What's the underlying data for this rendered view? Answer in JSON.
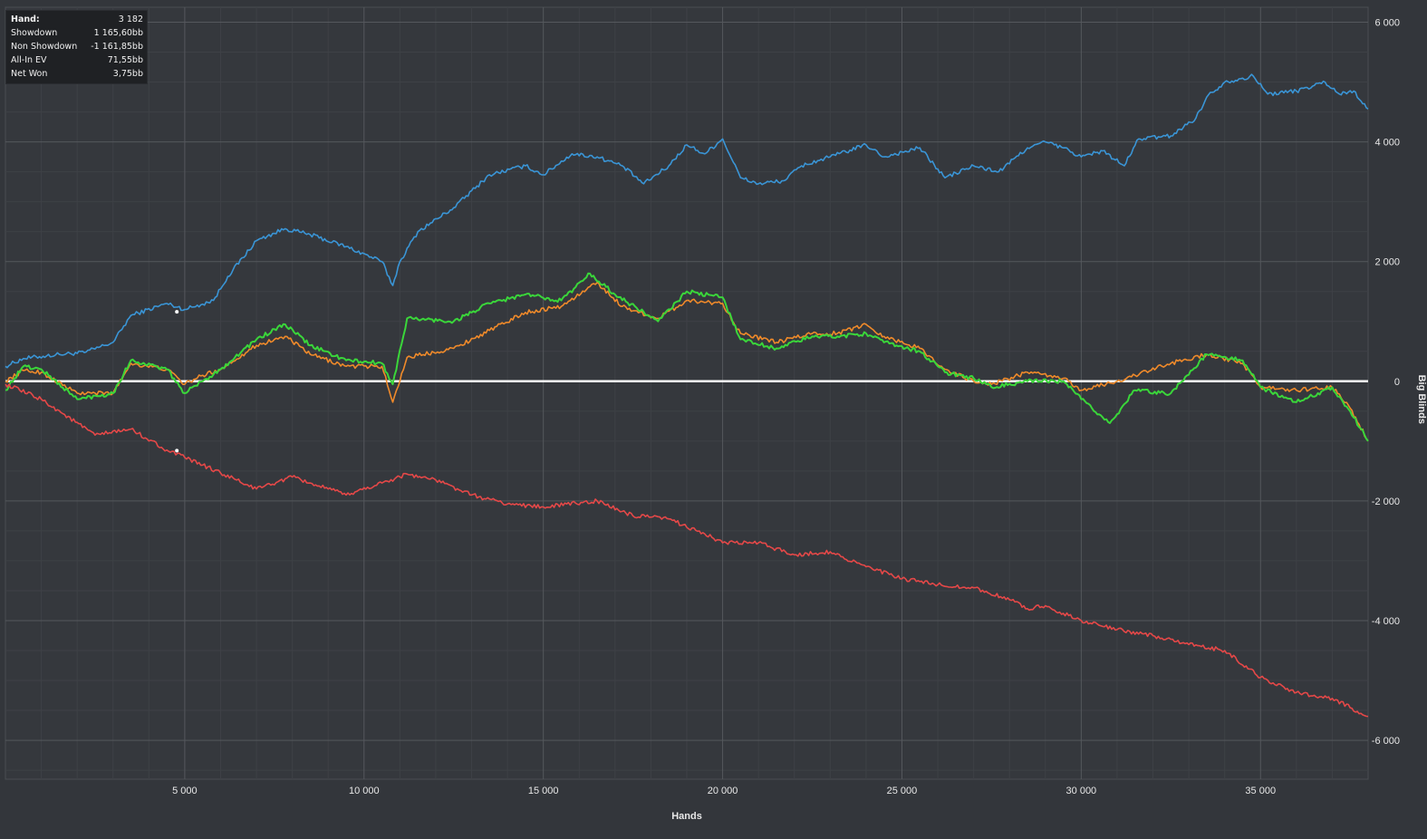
{
  "info_panel": {
    "rows": [
      {
        "label": "Hand:",
        "value": "3 182"
      },
      {
        "label": "Showdown",
        "value": "1 165,60bb"
      },
      {
        "label": "Non Showdown",
        "value": "-1 161,85bb"
      },
      {
        "label": "All-In EV",
        "value": "71,55bb"
      },
      {
        "label": "Net Won",
        "value": "3,75bb"
      }
    ]
  },
  "chart_data": {
    "type": "line",
    "xlabel": "Hands",
    "ylabel": "Big Blinds",
    "xlim": [
      0,
      38000
    ],
    "ylim": [
      -6650,
      6250
    ],
    "x_ticks": [
      5000,
      10000,
      15000,
      20000,
      25000,
      30000,
      35000
    ],
    "x_tick_labels": [
      "5 000",
      "10 000",
      "15 000",
      "20 000",
      "25 000",
      "30 000",
      "35 000"
    ],
    "y_ticks": [
      6000,
      4000,
      2000,
      0,
      -2000,
      -4000,
      -6000
    ],
    "y_tick_labels": [
      "6 000",
      "4 000",
      "2 000",
      "0",
      "-2 000",
      "-4 000",
      "-6 000"
    ],
    "grid": true,
    "zero_line": true,
    "series": [
      {
        "color": "#3a95d6",
        "points": [
          [
            0,
            250
          ],
          [
            500,
            380
          ],
          [
            1500,
            450
          ],
          [
            2200,
            480
          ],
          [
            3000,
            650
          ],
          [
            3500,
            1100
          ],
          [
            4500,
            1300
          ],
          [
            5000,
            1200
          ],
          [
            5800,
            1350
          ],
          [
            6200,
            1750
          ],
          [
            7000,
            2350
          ],
          [
            7800,
            2550
          ],
          [
            8500,
            2450
          ],
          [
            9500,
            2250
          ],
          [
            10500,
            2000
          ],
          [
            10800,
            1600
          ],
          [
            11000,
            2000
          ],
          [
            11500,
            2500
          ],
          [
            12500,
            2900
          ],
          [
            13500,
            3450
          ],
          [
            14500,
            3600
          ],
          [
            15000,
            3450
          ],
          [
            15800,
            3800
          ],
          [
            16500,
            3750
          ],
          [
            17200,
            3600
          ],
          [
            17800,
            3300
          ],
          [
            18500,
            3600
          ],
          [
            19000,
            3950
          ],
          [
            19500,
            3800
          ],
          [
            20000,
            4050
          ],
          [
            20500,
            3400
          ],
          [
            21000,
            3300
          ],
          [
            21700,
            3350
          ],
          [
            22200,
            3600
          ],
          [
            23000,
            3750
          ],
          [
            24000,
            3950
          ],
          [
            24500,
            3750
          ],
          [
            25500,
            3900
          ],
          [
            26200,
            3400
          ],
          [
            27000,
            3600
          ],
          [
            27700,
            3500
          ],
          [
            28500,
            3900
          ],
          [
            29000,
            4000
          ],
          [
            29500,
            3900
          ],
          [
            30000,
            3750
          ],
          [
            30600,
            3850
          ],
          [
            31200,
            3600
          ],
          [
            31600,
            4050
          ],
          [
            32500,
            4100
          ],
          [
            33200,
            4400
          ],
          [
            33500,
            4750
          ],
          [
            34000,
            5000
          ],
          [
            34800,
            5100
          ],
          [
            35200,
            4800
          ],
          [
            36000,
            4850
          ],
          [
            36800,
            5000
          ],
          [
            37200,
            4800
          ],
          [
            37600,
            4850
          ],
          [
            38000,
            4550
          ]
        ]
      },
      {
        "color": "#f08a2a",
        "points": [
          [
            0,
            0
          ],
          [
            500,
            180
          ],
          [
            1000,
            150
          ],
          [
            2000,
            -200
          ],
          [
            3000,
            -200
          ],
          [
            3500,
            300
          ],
          [
            4500,
            200
          ],
          [
            5000,
            -50
          ],
          [
            5500,
            100
          ],
          [
            6000,
            200
          ],
          [
            7000,
            600
          ],
          [
            7800,
            750
          ],
          [
            8500,
            450
          ],
          [
            9500,
            250
          ],
          [
            10500,
            250
          ],
          [
            10800,
            -350
          ],
          [
            11200,
            400
          ],
          [
            12500,
            550
          ],
          [
            13500,
            850
          ],
          [
            14500,
            1150
          ],
          [
            15500,
            1250
          ],
          [
            16500,
            1650
          ],
          [
            17200,
            1250
          ],
          [
            18200,
            1050
          ],
          [
            19000,
            1350
          ],
          [
            20000,
            1300
          ],
          [
            20500,
            800
          ],
          [
            21500,
            650
          ],
          [
            22500,
            800
          ],
          [
            23200,
            800
          ],
          [
            24000,
            950
          ],
          [
            24500,
            750
          ],
          [
            25500,
            550
          ],
          [
            26200,
            200
          ],
          [
            27000,
            0
          ],
          [
            27500,
            -50
          ],
          [
            28500,
            150
          ],
          [
            29500,
            50
          ],
          [
            30000,
            -150
          ],
          [
            31000,
            0
          ],
          [
            31500,
            100
          ],
          [
            32500,
            300
          ],
          [
            33500,
            450
          ],
          [
            34500,
            300
          ],
          [
            35000,
            -100
          ],
          [
            36000,
            -150
          ],
          [
            37000,
            -100
          ],
          [
            37500,
            -450
          ],
          [
            38000,
            -1000
          ]
        ]
      },
      {
        "color": "#3ad63a",
        "points": [
          [
            0,
            -150
          ],
          [
            500,
            250
          ],
          [
            1000,
            200
          ],
          [
            2000,
            -300
          ],
          [
            3000,
            -200
          ],
          [
            3500,
            350
          ],
          [
            4500,
            200
          ],
          [
            5000,
            -200
          ],
          [
            5500,
            0
          ],
          [
            6000,
            200
          ],
          [
            7000,
            700
          ],
          [
            7800,
            950
          ],
          [
            8500,
            600
          ],
          [
            9500,
            350
          ],
          [
            10500,
            300
          ],
          [
            10800,
            -50
          ],
          [
            11200,
            1050
          ],
          [
            12500,
            1000
          ],
          [
            13500,
            1300
          ],
          [
            14500,
            1450
          ],
          [
            15500,
            1350
          ],
          [
            16300,
            1800
          ],
          [
            17000,
            1450
          ],
          [
            18200,
            1000
          ],
          [
            19000,
            1500
          ],
          [
            20000,
            1400
          ],
          [
            20500,
            700
          ],
          [
            21500,
            550
          ],
          [
            22500,
            750
          ],
          [
            23200,
            750
          ],
          [
            24000,
            800
          ],
          [
            24500,
            650
          ],
          [
            25500,
            500
          ],
          [
            26200,
            150
          ],
          [
            27000,
            50
          ],
          [
            27500,
            -100
          ],
          [
            28500,
            0
          ],
          [
            29500,
            0
          ],
          [
            30000,
            -300
          ],
          [
            30800,
            -700
          ],
          [
            31500,
            -150
          ],
          [
            32500,
            -200
          ],
          [
            33500,
            450
          ],
          [
            34500,
            350
          ],
          [
            35000,
            -100
          ],
          [
            36000,
            -350
          ],
          [
            37000,
            -100
          ],
          [
            37500,
            -500
          ],
          [
            38000,
            -1000
          ]
        ]
      },
      {
        "color": "#e54848",
        "points": [
          [
            0,
            -50
          ],
          [
            1000,
            -300
          ],
          [
            2500,
            -900
          ],
          [
            3500,
            -800
          ],
          [
            4500,
            -1150
          ],
          [
            5500,
            -1400
          ],
          [
            7000,
            -1800
          ],
          [
            8000,
            -1600
          ],
          [
            9000,
            -1800
          ],
          [
            9500,
            -1900
          ],
          [
            10500,
            -1700
          ],
          [
            11200,
            -1550
          ],
          [
            12000,
            -1650
          ],
          [
            13000,
            -1900
          ],
          [
            14000,
            -2050
          ],
          [
            15000,
            -2100
          ],
          [
            16500,
            -2000
          ],
          [
            17500,
            -2250
          ],
          [
            18500,
            -2300
          ],
          [
            19500,
            -2550
          ],
          [
            20000,
            -2700
          ],
          [
            21000,
            -2700
          ],
          [
            22000,
            -2900
          ],
          [
            23000,
            -2850
          ],
          [
            24000,
            -3100
          ],
          [
            25000,
            -3300
          ],
          [
            26000,
            -3400
          ],
          [
            27000,
            -3450
          ],
          [
            28000,
            -3650
          ],
          [
            28500,
            -3800
          ],
          [
            29000,
            -3750
          ],
          [
            30000,
            -4000
          ],
          [
            31000,
            -4150
          ],
          [
            32000,
            -4250
          ],
          [
            33000,
            -4400
          ],
          [
            34000,
            -4500
          ],
          [
            35000,
            -4950
          ],
          [
            36000,
            -5200
          ],
          [
            37000,
            -5300
          ],
          [
            38000,
            -5600
          ]
        ]
      }
    ],
    "markers": [
      {
        "x": 4780,
        "y": 1160
      },
      {
        "x": 4780,
        "y": -1160
      }
    ]
  }
}
